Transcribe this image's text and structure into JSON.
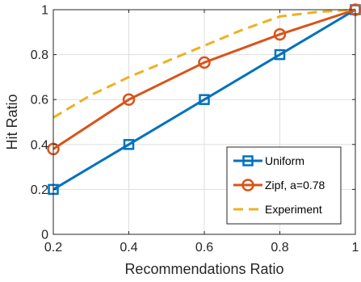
{
  "chart_data": {
    "type": "line",
    "title": "",
    "xlabel": "Recommendations Ratio",
    "ylabel": "Hit Ratio",
    "xlim": [
      0.2,
      1
    ],
    "ylim": [
      0,
      1
    ],
    "xticks": [
      0.2,
      0.4,
      0.6,
      0.8,
      1
    ],
    "yticks": [
      0,
      0.2,
      0.4,
      0.6,
      0.8,
      1
    ],
    "xtick_labels": [
      "0.2",
      "0.4",
      "0.6",
      "0.8",
      "1"
    ],
    "ytick_labels": [
      "0",
      "0.2",
      "0.4",
      "0.6",
      "0.8",
      "1"
    ],
    "grid": true,
    "legend_position": "bottom-right",
    "series": [
      {
        "name": "Uniform",
        "color": "#0072BD",
        "marker": "square",
        "line_style": "solid",
        "x": [
          0.2,
          0.4,
          0.6,
          0.8,
          1
        ],
        "y": [
          0.2,
          0.4,
          0.6,
          0.8,
          1.0
        ]
      },
      {
        "name": "Zipf, a=0.78",
        "color": "#D95319",
        "marker": "circle",
        "line_style": "solid",
        "x": [
          0.2,
          0.4,
          0.6,
          0.8,
          1
        ],
        "y": [
          0.38,
          0.6,
          0.765,
          0.89,
          1.0
        ]
      },
      {
        "name": "Experiment",
        "color": "#EDB120",
        "marker": "none",
        "line_style": "dashed",
        "x": [
          0.2,
          0.3,
          0.4,
          0.5,
          0.6,
          0.7,
          0.8,
          0.9,
          1
        ],
        "y": [
          0.52,
          0.62,
          0.7,
          0.77,
          0.84,
          0.91,
          0.97,
          0.99,
          1.0
        ]
      }
    ]
  }
}
